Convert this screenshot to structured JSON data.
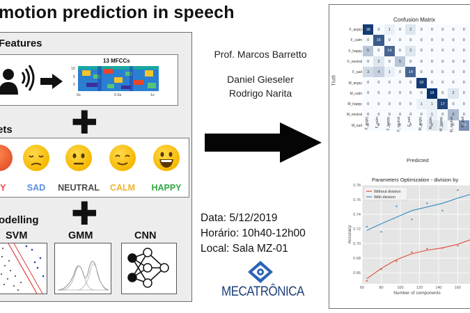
{
  "title": "motion prediction in speech",
  "features": {
    "label": "Features",
    "spectrogram_title": "13 MFCCs",
    "y_ticks": [
      "10",
      "5",
      "0"
    ],
    "x_ticks": [
      "0s",
      "0.5s",
      "1s"
    ]
  },
  "targets": {
    "label": "ets",
    "emotions": [
      {
        "label": "RY",
        "color": "#e1463a"
      },
      {
        "label": "SAD",
        "color": "#5b8de0"
      },
      {
        "label": "NEUTRAL",
        "color": "#4a4a4a"
      },
      {
        "label": "CALM",
        "color": "#f0b429"
      },
      {
        "label": "HAPPY",
        "color": "#33a845"
      }
    ]
  },
  "modelling": {
    "label": "odelling",
    "models": [
      "SVM",
      "GMM",
      "CNN"
    ]
  },
  "people": {
    "advisor": "Prof. Marcos Barretto",
    "student1": "Daniel Gieseler",
    "student2": "Rodrigo Narita"
  },
  "event": {
    "date": "Data: 5/12/2019",
    "time": "Horário: 10h40-12h00",
    "place": "Local: Sala MZ-01"
  },
  "logo_text": "MECATRÔNICA",
  "confusion": {
    "title": "Confusion Matrix",
    "ylabel": "Truth",
    "xlabel": "Predicted",
    "rows": [
      "F_angry",
      "F_calm",
      "F_happy",
      "F_neutral",
      "F_sad",
      "M_angry",
      "M_calm",
      "M_happy",
      "M_neutral",
      "M_sad"
    ],
    "cols": [
      "F_angry",
      "F_calm",
      "F_happy",
      "F_neutral",
      "F_sad",
      "M_angry",
      "M_calm",
      "M_happy",
      "M_neutral",
      "M_sad"
    ],
    "matrix": [
      [
        18,
        0,
        1,
        0,
        2,
        0,
        0,
        0,
        0,
        0
      ],
      [
        0,
        15,
        0,
        0,
        0,
        0,
        0,
        0,
        0,
        0
      ],
      [
        5,
        0,
        14,
        0,
        2,
        0,
        0,
        0,
        0,
        0
      ],
      [
        0,
        2,
        0,
        5,
        0,
        0,
        0,
        0,
        0,
        0
      ],
      [
        3,
        4,
        1,
        0,
        14,
        0,
        0,
        0,
        0,
        0
      ],
      [
        0,
        0,
        0,
        0,
        0,
        18,
        0,
        0,
        0,
        0
      ],
      [
        0,
        0,
        0,
        0,
        0,
        0,
        19,
        0,
        2,
        0
      ],
      [
        0,
        0,
        0,
        0,
        0,
        1,
        1,
        17,
        0,
        0
      ],
      [
        0,
        0,
        0,
        0,
        0,
        0,
        1,
        0,
        6,
        0
      ],
      [
        0,
        0,
        0,
        0,
        0,
        0,
        2,
        1,
        0,
        10
      ]
    ]
  },
  "chart_data": {
    "type": "scatter",
    "title": "Parameters Optimization - division by",
    "xlabel": "Number of components",
    "ylabel": "Accuracy",
    "xlim": [
      60,
      175
    ],
    "ylim": [
      0.645,
      0.78
    ],
    "x_ticks": [
      60,
      80,
      100,
      120,
      140,
      160
    ],
    "y_ticks": [
      0.66,
      0.68,
      0.7,
      0.72,
      0.74,
      0.76,
      0.78
    ],
    "legend_position": "top-left",
    "series": [
      {
        "name": "Without division",
        "color": "#e24a33",
        "points": [
          [
            65,
            0.649
          ],
          [
            80,
            0.665
          ],
          [
            96,
            0.676
          ],
          [
            112,
            0.688
          ],
          [
            128,
            0.693
          ],
          [
            144,
            0.694
          ],
          [
            160,
            0.697
          ],
          [
            176,
            0.722
          ]
        ],
        "trend": [
          [
            65,
            0.652
          ],
          [
            80,
            0.666
          ],
          [
            96,
            0.678
          ],
          [
            112,
            0.686
          ],
          [
            128,
            0.691
          ],
          [
            144,
            0.694
          ],
          [
            160,
            0.699
          ],
          [
            175,
            0.706
          ]
        ]
      },
      {
        "name": "With division",
        "color": "#348abd",
        "points": [
          [
            65,
            0.723
          ],
          [
            80,
            0.716
          ],
          [
            96,
            0.751
          ],
          [
            112,
            0.733
          ],
          [
            128,
            0.755
          ],
          [
            144,
            0.745
          ],
          [
            160,
            0.773
          ],
          [
            176,
            0.758
          ]
        ],
        "trend": [
          [
            65,
            0.718
          ],
          [
            80,
            0.727
          ],
          [
            96,
            0.736
          ],
          [
            112,
            0.745
          ],
          [
            128,
            0.75
          ],
          [
            144,
            0.755
          ],
          [
            160,
            0.762
          ],
          [
            175,
            0.768
          ]
        ]
      }
    ]
  }
}
